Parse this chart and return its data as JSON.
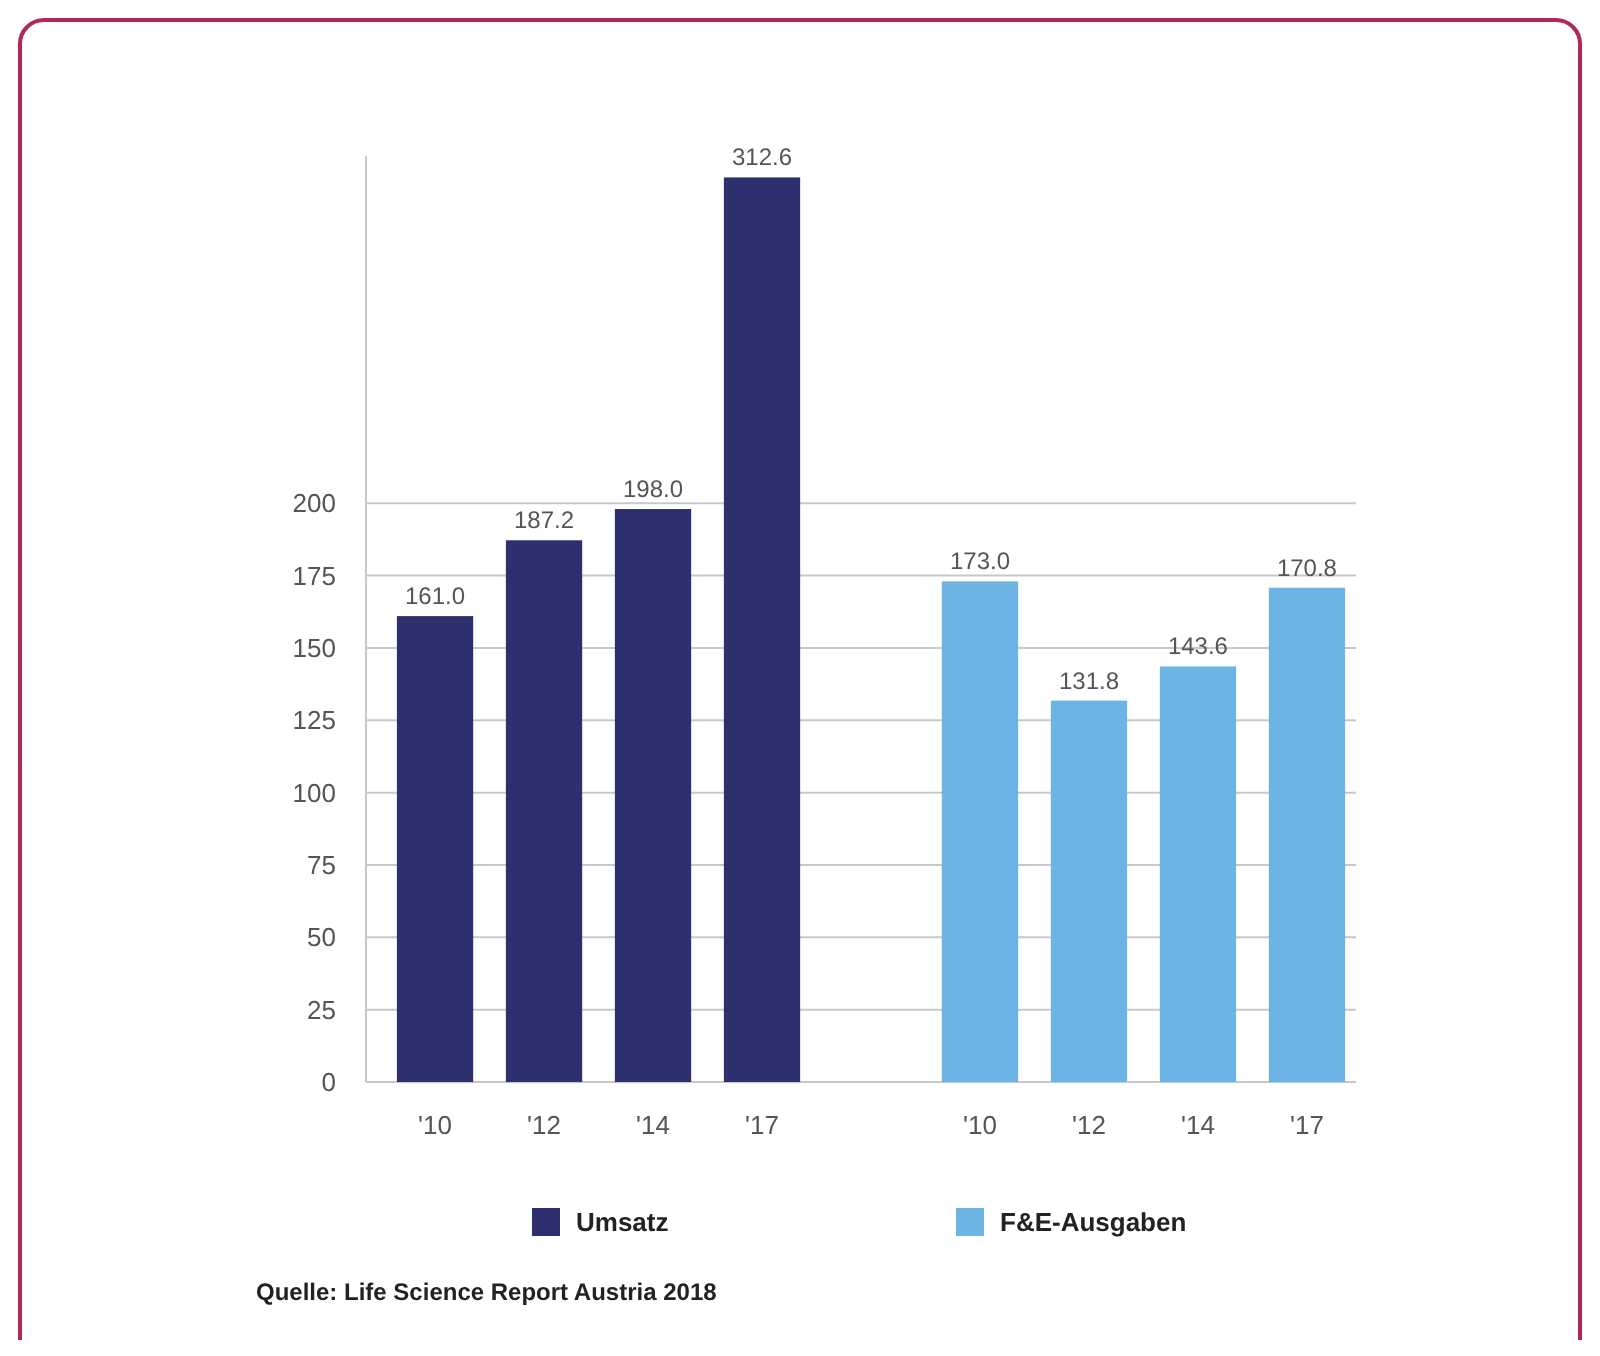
{
  "chart_data": {
    "type": "bar",
    "categories": [
      "'10",
      "'12",
      "'14",
      "'17",
      null,
      "'10",
      "'12",
      "'14",
      "'17"
    ],
    "series": [
      {
        "name": "Umsatz",
        "color": "#2e2f6e",
        "values": [
          161.0,
          187.2,
          198.0,
          312.6,
          null,
          null,
          null,
          null,
          null
        ],
        "value_labels": [
          "161.0",
          "187.2",
          "198.0",
          "312.6",
          null,
          null,
          null,
          null,
          null
        ]
      },
      {
        "name": "F&E-Ausgaben",
        "color": "#6cb4e4",
        "values": [
          null,
          null,
          null,
          null,
          null,
          173.0,
          131.8,
          143.6,
          170.8
        ],
        "value_labels": [
          null,
          null,
          null,
          null,
          null,
          "173.0",
          "131.8",
          "143.6",
          "170.8"
        ]
      }
    ],
    "ylim": [
      0,
      320
    ],
    "yticks": [
      0,
      25,
      50,
      75,
      100,
      125,
      150,
      175,
      200
    ],
    "grid": "y",
    "legend": "bottom",
    "annotations": [
      "Quelle: Life Science Report Austria 2018"
    ]
  }
}
